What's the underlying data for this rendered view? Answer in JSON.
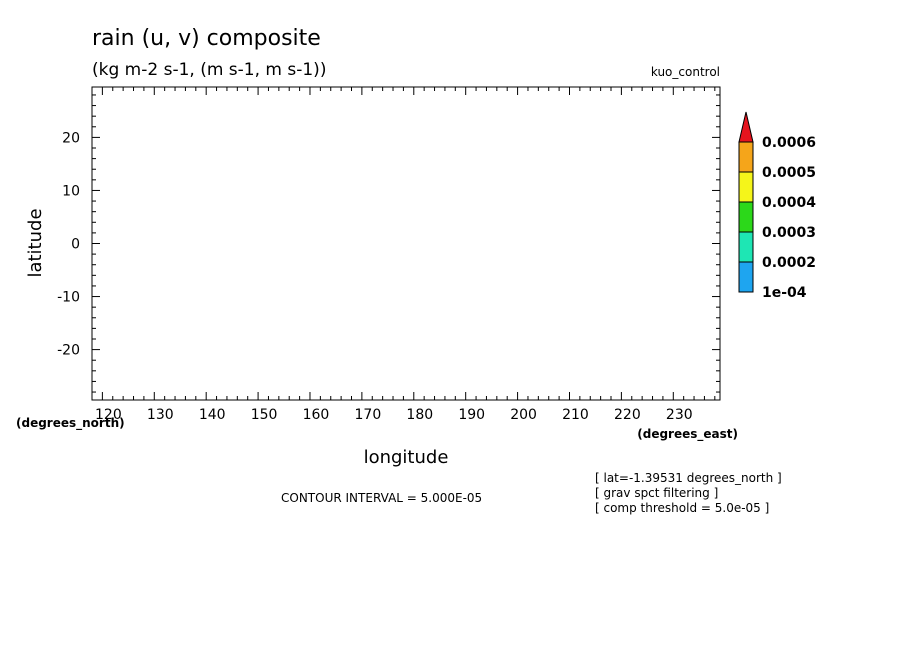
{
  "chart_data": {
    "type": "heatmap",
    "title": "rain (u, v) composite",
    "subtitle": "(kg m-2 s-1, (m s-1, m s-1))",
    "run_label": "kuo_control",
    "xlabel": "longitude",
    "ylabel": "latitude",
    "x_units": "(degrees_east)",
    "y_units": "(degrees_north)",
    "xlim": [
      118,
      239
    ],
    "ylim": [
      -29.5,
      29.5
    ],
    "x_ticks": [
      120,
      130,
      140,
      150,
      160,
      170,
      180,
      190,
      200,
      210,
      220,
      230
    ],
    "y_ticks": [
      20,
      10,
      0,
      -10,
      -20
    ],
    "grid": false,
    "values": [],
    "contour_interval_text": "CONTOUR INTERVAL = 5.000E-05",
    "info_lines": [
      "[ lat=-1.39531 degrees_north ]",
      "[ grav spct filtering ]",
      "[ comp threshold = 5.0e-05 ]"
    ],
    "colorbar": {
      "levels": [
        "1e-04",
        "0.0002",
        "0.0003",
        "0.0004",
        "0.0005",
        "0.0006"
      ],
      "colors": [
        "#1ea5f0",
        "#1ee6b4",
        "#2cd81a",
        "#f5f51a",
        "#f5a51a",
        "#e6141e"
      ],
      "extend": "max"
    }
  }
}
